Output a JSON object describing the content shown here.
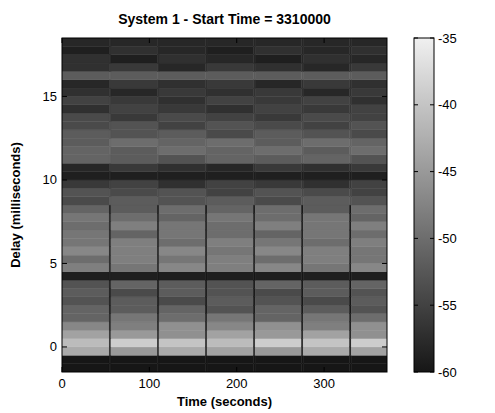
{
  "chart_data": {
    "type": "heatmap",
    "title": "System 1 - Start Time = 3310000",
    "x_label": "Time (seconds)",
    "y_label": "Delay (milliseconds)",
    "xlim": [
      0,
      372
    ],
    "ylim": [
      -1.5,
      18.5
    ],
    "xticks": [
      0,
      100,
      200,
      300
    ],
    "yticks": [
      0,
      5,
      10,
      15
    ],
    "x_bins": [
      0,
      54,
      56,
      109,
      111,
      164,
      166,
      219,
      221,
      274,
      276,
      329,
      331,
      372
    ],
    "y_bins": [
      -1.5,
      -1,
      -0.5,
      0,
      0.5,
      1,
      1.5,
      2,
      2.5,
      3,
      3.5,
      4,
      4.5,
      5,
      5.5,
      6,
      6.5,
      7,
      7.5,
      8,
      8.5,
      9,
      9.5,
      10,
      10.5,
      11,
      11.5,
      12,
      12.5,
      13,
      13.5,
      14,
      14.5,
      15,
      15.5,
      16,
      16.5,
      17,
      17.5,
      18,
      18.5
    ],
    "values": [
      [
        -60,
        -60,
        -60,
        -60,
        -60,
        -60,
        -60,
        -60,
        -60,
        -60,
        -60,
        -60,
        -60
      ],
      [
        -60,
        -60,
        -60,
        -60,
        -60,
        -60,
        -60,
        -60,
        -60,
        -60,
        -60,
        -60,
        -60
      ],
      [
        -43,
        -58,
        -45,
        -58,
        -43,
        -58,
        -44,
        -58,
        -45,
        -58,
        -43,
        -58,
        -44
      ],
      [
        -41,
        -58,
        -39,
        -58,
        -40,
        -58,
        -41,
        -58,
        -39,
        -58,
        -40,
        -58,
        -39
      ],
      [
        -44,
        -58,
        -45,
        -58,
        -46,
        -58,
        -44,
        -58,
        -45,
        -58,
        -44,
        -58,
        -46
      ],
      [
        -47,
        -59,
        -48,
        -59,
        -46,
        -59,
        -47,
        -59,
        -46,
        -59,
        -48,
        -59,
        -46
      ],
      [
        -51,
        -59,
        -49,
        -59,
        -50,
        -59,
        -49,
        -59,
        -51,
        -59,
        -49,
        -59,
        -50
      ],
      [
        -51,
        -60,
        -52,
        -60,
        -51,
        -60,
        -53,
        -60,
        -51,
        -60,
        -52,
        -60,
        -53
      ],
      [
        -53,
        -60,
        -52,
        -60,
        -54,
        -60,
        -52,
        -60,
        -53,
        -60,
        -54,
        -60,
        -52
      ],
      [
        -52,
        -60,
        -54,
        -60,
        -52,
        -60,
        -53,
        -60,
        -54,
        -60,
        -52,
        -60,
        -53
      ],
      [
        -53,
        -60,
        -51,
        -60,
        -52,
        -60,
        -53,
        -60,
        -51,
        -60,
        -52,
        -60,
        -51
      ],
      [
        -59,
        -60,
        -59,
        -60,
        -59,
        -60,
        -59,
        -60,
        -59,
        -60,
        -59,
        -60,
        -59
      ],
      [
        -48,
        -59,
        -49,
        -59,
        -47,
        -59,
        -48,
        -59,
        -47,
        -59,
        -49,
        -59,
        -47
      ],
      [
        -50,
        -59,
        -48,
        -59,
        -49,
        -59,
        -48,
        -59,
        -50,
        -59,
        -48,
        -59,
        -49
      ],
      [
        -47,
        -59,
        -48,
        -59,
        -47,
        -59,
        -49,
        -59,
        -47,
        -59,
        -48,
        -59,
        -49
      ],
      [
        -49,
        -59,
        -48,
        -59,
        -50,
        -59,
        -48,
        -59,
        -49,
        -59,
        -50,
        -59,
        -48
      ],
      [
        -49,
        -59,
        -51,
        -59,
        -49,
        -59,
        -50,
        -59,
        -51,
        -59,
        -49,
        -59,
        -50
      ],
      [
        -50,
        -59,
        -48,
        -59,
        -49,
        -59,
        -50,
        -59,
        -48,
        -59,
        -49,
        -59,
        -48
      ],
      [
        -49,
        -59,
        -50,
        -59,
        -51,
        -59,
        -49,
        -59,
        -50,
        -59,
        -49,
        -59,
        -51
      ],
      [
        -51,
        -60,
        -52,
        -60,
        -50,
        -60,
        -51,
        -60,
        -50,
        -60,
        -52,
        -60,
        -50
      ],
      [
        -54,
        -53,
        -52,
        -53,
        -53,
        -53,
        -52,
        -53,
        -54,
        -53,
        -52,
        -53,
        -53
      ],
      [
        -53,
        -54,
        -54,
        -54,
        -53,
        -54,
        -55,
        -54,
        -53,
        -54,
        -54,
        -54,
        -55
      ],
      [
        -56,
        -56,
        -55,
        -56,
        -57,
        -56,
        -55,
        -56,
        -56,
        -56,
        -57,
        -56,
        -55
      ],
      [
        -59,
        -59,
        -59,
        -59,
        -59,
        -59,
        -59,
        -59,
        -59,
        -59,
        -59,
        -59,
        -59
      ],
      [
        -58,
        -57,
        -56,
        -57,
        -57,
        -57,
        -58,
        -57,
        -56,
        -57,
        -57,
        -57,
        -56
      ],
      [
        -51,
        -52,
        -52,
        -52,
        -53,
        -52,
        -51,
        -52,
        -52,
        -52,
        -51,
        -52,
        -53
      ],
      [
        -51,
        -51,
        -52,
        -51,
        -50,
        -51,
        -51,
        -51,
        -50,
        -51,
        -52,
        -51,
        -50
      ],
      [
        -52,
        -51,
        -50,
        -51,
        -51,
        -51,
        -50,
        -51,
        -52,
        -51,
        -50,
        -51,
        -51
      ],
      [
        -52,
        -53,
        -53,
        -53,
        -52,
        -53,
        -54,
        -53,
        -52,
        -53,
        -53,
        -53,
        -54
      ],
      [
        -54,
        -54,
        -53,
        -54,
        -55,
        -54,
        -53,
        -54,
        -54,
        -54,
        -55,
        -54,
        -53
      ],
      [
        -54,
        -55,
        -56,
        -55,
        -54,
        -55,
        -55,
        -55,
        -56,
        -55,
        -54,
        -55,
        -55
      ],
      [
        -57,
        -56,
        -55,
        -56,
        -56,
        -56,
        -57,
        -56,
        -55,
        -56,
        -56,
        -56,
        -55
      ],
      [
        -55,
        -56,
        -56,
        -56,
        -57,
        -56,
        -55,
        -56,
        -56,
        -56,
        -55,
        -56,
        -57
      ],
      [
        -57,
        -57,
        -58,
        -57,
        -56,
        -57,
        -57,
        -57,
        -56,
        -57,
        -58,
        -57,
        -56
      ],
      [
        -58,
        -57,
        -56,
        -57,
        -57,
        -57,
        -56,
        -57,
        -58,
        -57,
        -56,
        -57,
        -57
      ],
      [
        -52,
        -52,
        -52,
        -52,
        -52,
        -52,
        -52,
        -52,
        -52,
        -52,
        -52,
        -52,
        -52
      ],
      [
        -57,
        -57,
        -56,
        -57,
        -58,
        -57,
        -56,
        -57,
        -57,
        -57,
        -58,
        -57,
        -56
      ],
      [
        -57,
        -58,
        -59,
        -58,
        -57,
        -58,
        -58,
        -58,
        -59,
        -58,
        -57,
        -58,
        -58
      ],
      [
        -59,
        -58,
        -57,
        -58,
        -58,
        -58,
        -59,
        -58,
        -57,
        -58,
        -58,
        -58,
        -57
      ],
      [
        -58,
        -58,
        -58,
        -58,
        -58,
        -58,
        -58,
        -58,
        -58,
        -58,
        -58,
        -58,
        -58
      ]
    ],
    "colorbar_lim": [
      -60,
      -35
    ],
    "colorbar_ticks": [
      -60,
      -55,
      -50,
      -45,
      -40,
      -35
    ]
  }
}
